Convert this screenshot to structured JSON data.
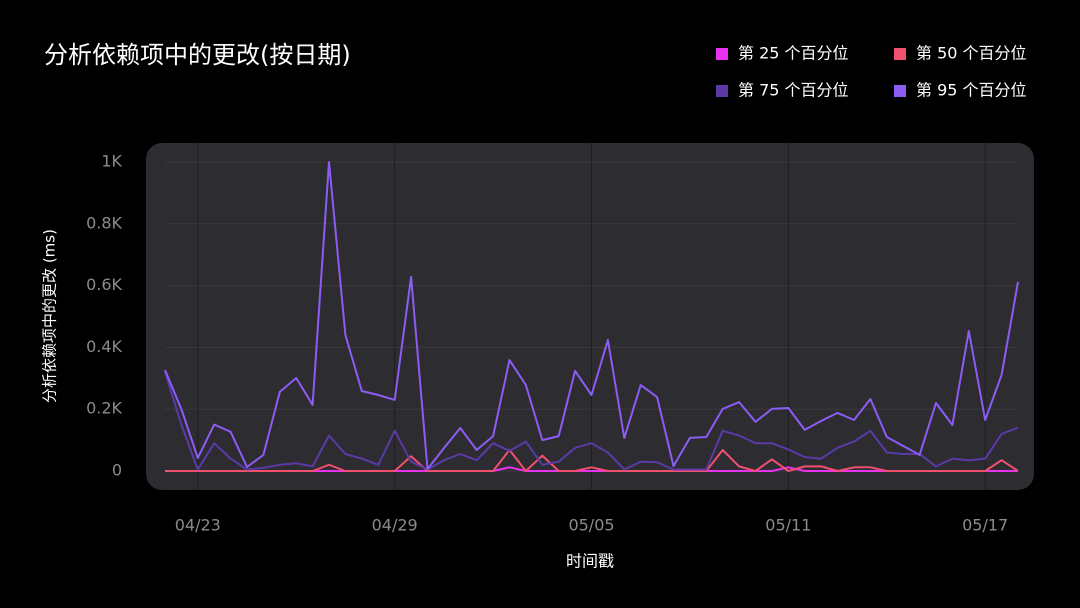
{
  "chart_data": {
    "type": "line",
    "title": "分析依赖项中的更改(按日期)",
    "x_label": "时间戳",
    "y_label": "分析依赖项中的更改 (ms)",
    "categories": [
      null,
      null,
      "04/23",
      null,
      null,
      null,
      null,
      null,
      null,
      null,
      null,
      null,
      null,
      null,
      "04/29",
      null,
      null,
      null,
      null,
      null,
      null,
      null,
      null,
      null,
      null,
      null,
      "05/05",
      null,
      null,
      null,
      null,
      null,
      null,
      null,
      null,
      null,
      null,
      null,
      "05/11",
      null,
      null,
      null,
      null,
      null,
      null,
      null,
      null,
      null,
      null,
      null,
      "05/17",
      null,
      null
    ],
    "series": [
      {
        "name": "第 25 个百分位",
        "color": "#e832f0",
        "values": [
          0,
          0,
          0,
          0,
          0,
          0,
          0,
          0,
          0,
          0,
          0,
          0,
          0,
          0,
          0,
          0,
          0,
          0,
          0,
          0,
          0,
          12,
          0,
          0,
          0,
          0,
          0,
          0,
          0,
          0,
          0,
          0,
          0,
          0,
          0,
          0,
          0,
          0,
          12,
          0,
          0,
          0,
          0,
          0,
          0,
          0,
          0,
          0,
          0,
          0,
          0,
          0,
          0
        ]
      },
      {
        "name": "第 50 个百分位",
        "color": "#f0506e",
        "values": [
          0,
          0,
          0,
          0,
          0,
          0,
          0,
          0,
          0,
          0,
          20,
          0,
          0,
          0,
          0,
          48,
          0,
          0,
          0,
          0,
          0,
          68,
          0,
          50,
          0,
          0,
          12,
          0,
          0,
          0,
          0,
          0,
          0,
          0,
          68,
          15,
          0,
          38,
          0,
          15,
          15,
          0,
          12,
          12,
          0,
          0,
          0,
          0,
          0,
          0,
          0,
          35,
          0
        ]
      },
      {
        "name": "第 75 个百分位",
        "color": "#5b3aa8",
        "values": [
          320,
          150,
          5,
          90,
          40,
          5,
          10,
          20,
          25,
          15,
          115,
          55,
          40,
          20,
          130,
          30,
          5,
          35,
          55,
          35,
          90,
          65,
          95,
          20,
          30,
          75,
          90,
          60,
          5,
          30,
          28,
          5,
          5,
          5,
          130,
          115,
          90,
          90,
          70,
          45,
          40,
          75,
          95,
          130,
          60,
          55,
          55,
          15,
          40,
          35,
          40,
          120,
          140
        ]
      },
      {
        "name": "第 95 个百分位",
        "color": "#8c5cf5",
        "values": [
          327,
          200,
          42,
          150,
          127,
          13,
          52,
          256,
          301,
          214,
          1000,
          440,
          259,
          246,
          230,
          628,
          6,
          74,
          139,
          68,
          113,
          359,
          278,
          100,
          113,
          324,
          246,
          424,
          107,
          278,
          239,
          16,
          107,
          110,
          201,
          223,
          159,
          201,
          204,
          133,
          162,
          188,
          165,
          233,
          110,
          81,
          52,
          220,
          149,
          453,
          165,
          311,
          612
        ]
      }
    ],
    "ylim": [
      0,
      1000
    ],
    "yticks": [
      0,
      {
        "value": 200,
        "label": "0.2K"
      },
      {
        "value": 400,
        "label": "0.4K"
      },
      {
        "value": 600,
        "label": "0.6K"
      },
      {
        "value": 800,
        "label": "0.8K"
      },
      {
        "value": 1000,
        "label": "1K"
      }
    ],
    "grid": true
  }
}
